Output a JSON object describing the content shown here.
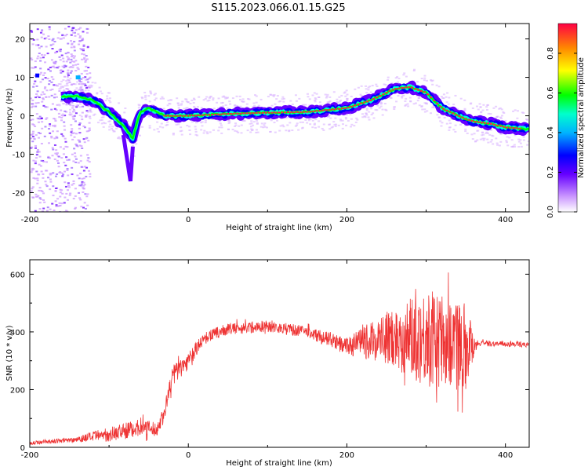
{
  "title": "S115.2023.066.01.15.G25",
  "chart_data": [
    {
      "type": "heatmap",
      "xlabel": "Height of straight line (km)",
      "ylabel": "Frequency (Hz)",
      "xlim": [
        -200,
        430
      ],
      "ylim": [
        -25,
        24
      ],
      "xticks": [
        -200,
        0,
        200,
        400
      ],
      "yticks": [
        20,
        10,
        0,
        -10,
        -20
      ],
      "colorbar": {
        "label": "Normalized spectral amplitude",
        "range": [
          0,
          0.95
        ],
        "ticks": [
          0.0,
          0.2,
          0.4,
          0.6,
          0.8
        ],
        "colormap": [
          "#ffffff",
          "#cc99ff",
          "#6600ff",
          "#0000ff",
          "#00b3ff",
          "#00ffcc",
          "#00ff00",
          "#ffff00",
          "#ff8800",
          "#ff0044"
        ]
      },
      "ridge": {
        "x": [
          -160,
          -140,
          -120,
          -100,
          -90,
          -80,
          -70,
          -65,
          -60,
          -50,
          -40,
          -30,
          0,
          50,
          100,
          150,
          200,
          230,
          260,
          280,
          300,
          320,
          340,
          360,
          380,
          400,
          430
        ],
        "y": [
          5,
          5,
          4,
          1,
          -1,
          -3,
          -6,
          -2,
          1,
          2,
          1,
          0,
          0,
          0.5,
          0.8,
          1,
          2,
          4,
          7,
          7.5,
          6,
          2,
          0,
          -1.5,
          -2,
          -3,
          -3.5
        ]
      }
    },
    {
      "type": "line",
      "xlabel": "Height of straight line (km)",
      "ylabel": "SNR (10 * v/v)",
      "xlim": [
        -200,
        430
      ],
      "ylim": [
        0,
        650
      ],
      "xticks": [
        -200,
        0,
        200,
        400
      ],
      "yticks": [
        0,
        200,
        400,
        600
      ],
      "color": "#ee3333",
      "envelope": {
        "x": [
          -200,
          -150,
          -100,
          -60,
          -40,
          -30,
          -20,
          0,
          20,
          50,
          100,
          150,
          200,
          250,
          300,
          350,
          365,
          380,
          430
        ],
        "y": [
          15,
          25,
          45,
          70,
          60,
          120,
          250,
          300,
          380,
          410,
          420,
          400,
          350,
          380,
          380,
          360,
          360,
          360,
          355
        ],
        "amp": [
          6,
          8,
          25,
          30,
          25,
          30,
          40,
          30,
          20,
          20,
          20,
          20,
          30,
          90,
          170,
          150,
          10,
          10,
          8
        ]
      }
    }
  ]
}
